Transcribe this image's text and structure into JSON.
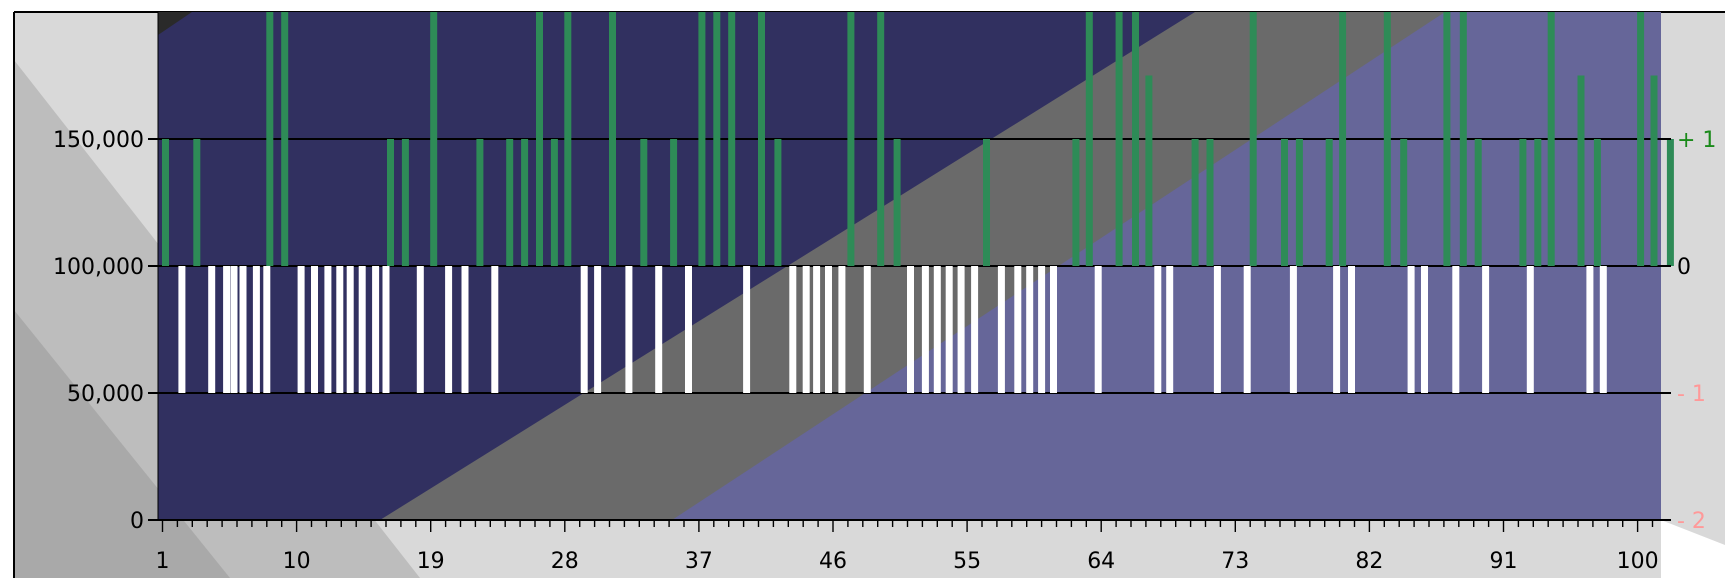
{
  "chart_data": {
    "type": "bar",
    "title": "",
    "xlabel": "",
    "ylabel": "",
    "x_ticks": [
      1,
      10,
      19,
      28,
      37,
      46,
      55,
      64,
      73,
      82,
      91,
      100
    ],
    "x_tick_labels": [
      "1",
      "10",
      "19",
      "28",
      "37",
      "46",
      "55",
      "64",
      "73",
      "82",
      "91",
      "100"
    ],
    "xlim": [
      1,
      101
    ],
    "y_ticks": [
      0,
      50000,
      100000,
      150000
    ],
    "y_tick_labels": [
      "0",
      "50,000",
      "100,000",
      "150,000"
    ],
    "ylim": [
      0,
      200000
    ],
    "y2_ticks": [
      -2,
      -1,
      0,
      1
    ],
    "y2_tick_labels": [
      "- 2",
      "- 1",
      "0",
      "+ 1"
    ],
    "y2lim": [
      -2,
      2
    ],
    "grid": true,
    "legend": "none",
    "baseline": 100000,
    "series": [
      {
        "color": "#2e8b57",
        "values": [
          {
            "x": 1.2,
            "y": 150000
          },
          {
            "x": 3.3,
            "y": 150000
          },
          {
            "x": 8.2,
            "y": 200000
          },
          {
            "x": 9.2,
            "y": 200000
          },
          {
            "x": 16.3,
            "y": 150000
          },
          {
            "x": 17.3,
            "y": 150000
          },
          {
            "x": 19.2,
            "y": 200000
          },
          {
            "x": 22.3,
            "y": 150000
          },
          {
            "x": 24.3,
            "y": 150000
          },
          {
            "x": 25.3,
            "y": 150000
          },
          {
            "x": 26.3,
            "y": 200000
          },
          {
            "x": 27.3,
            "y": 150000
          },
          {
            "x": 28.2,
            "y": 200000
          },
          {
            "x": 31.2,
            "y": 200000
          },
          {
            "x": 33.3,
            "y": 150000
          },
          {
            "x": 35.3,
            "y": 150000
          },
          {
            "x": 37.2,
            "y": 200000
          },
          {
            "x": 38.2,
            "y": 200000
          },
          {
            "x": 39.2,
            "y": 200000
          },
          {
            "x": 41.2,
            "y": 200000
          },
          {
            "x": 42.3,
            "y": 150000
          },
          {
            "x": 47.2,
            "y": 200000
          },
          {
            "x": 49.2,
            "y": 200000
          },
          {
            "x": 50.3,
            "y": 150000
          },
          {
            "x": 56.3,
            "y": 150000
          },
          {
            "x": 62.3,
            "y": 150000
          },
          {
            "x": 63.2,
            "y": 200000
          },
          {
            "x": 65.2,
            "y": 200000
          },
          {
            "x": 66.3,
            "y": 200000
          },
          {
            "x": 67.2,
            "y": 175000
          },
          {
            "x": 70.3,
            "y": 150000
          },
          {
            "x": 71.3,
            "y": 150000
          },
          {
            "x": 74.2,
            "y": 200000
          },
          {
            "x": 76.3,
            "y": 150000
          },
          {
            "x": 77.3,
            "y": 150000
          },
          {
            "x": 79.3,
            "y": 150000
          },
          {
            "x": 80.2,
            "y": 200000
          },
          {
            "x": 83.2,
            "y": 200000
          },
          {
            "x": 84.3,
            "y": 150000
          },
          {
            "x": 87.2,
            "y": 200000
          },
          {
            "x": 88.3,
            "y": 200000
          },
          {
            "x": 89.3,
            "y": 150000
          },
          {
            "x": 92.3,
            "y": 150000
          },
          {
            "x": 93.3,
            "y": 150000
          },
          {
            "x": 94.2,
            "y": 200000
          },
          {
            "x": 96.2,
            "y": 175000
          },
          {
            "x": 97.3,
            "y": 150000
          },
          {
            "x": 100.2,
            "y": 200000
          },
          {
            "x": 101.1,
            "y": 175000
          },
          {
            "x": 102.2,
            "y": 150000
          }
        ]
      },
      {
        "color": "#ffffff",
        "values": [
          {
            "x": 2.3,
            "y": 50000
          },
          {
            "x": 4.3,
            "y": 50000
          },
          {
            "x": 5.3,
            "y": 50000
          },
          {
            "x": 5.8,
            "y": 50000
          },
          {
            "x": 6.4,
            "y": 50000
          },
          {
            "x": 7.3,
            "y": 50000
          },
          {
            "x": 8.0,
            "y": 50000
          },
          {
            "x": 10.3,
            "y": 50000
          },
          {
            "x": 11.2,
            "y": 50000
          },
          {
            "x": 12.1,
            "y": 50000
          },
          {
            "x": 12.9,
            "y": 50000
          },
          {
            "x": 13.6,
            "y": 50000
          },
          {
            "x": 14.4,
            "y": 50000
          },
          {
            "x": 15.3,
            "y": 50000
          },
          {
            "x": 16.0,
            "y": 50000
          },
          {
            "x": 18.3,
            "y": 50000
          },
          {
            "x": 20.2,
            "y": 50000
          },
          {
            "x": 21.3,
            "y": 50000
          },
          {
            "x": 23.3,
            "y": 50000
          },
          {
            "x": 29.3,
            "y": 50000
          },
          {
            "x": 30.2,
            "y": 50000
          },
          {
            "x": 32.3,
            "y": 50000
          },
          {
            "x": 34.3,
            "y": 50000
          },
          {
            "x": 36.3,
            "y": 50000
          },
          {
            "x": 40.2,
            "y": 50000
          },
          {
            "x": 43.3,
            "y": 50000
          },
          {
            "x": 44.2,
            "y": 50000
          },
          {
            "x": 44.9,
            "y": 50000
          },
          {
            "x": 45.7,
            "y": 50000
          },
          {
            "x": 46.6,
            "y": 50000
          },
          {
            "x": 48.3,
            "y": 50000
          },
          {
            "x": 51.2,
            "y": 50000
          },
          {
            "x": 52.2,
            "y": 50000
          },
          {
            "x": 53.0,
            "y": 50000
          },
          {
            "x": 53.8,
            "y": 50000
          },
          {
            "x": 54.6,
            "y": 50000
          },
          {
            "x": 55.5,
            "y": 50000
          },
          {
            "x": 57.3,
            "y": 50000
          },
          {
            "x": 58.4,
            "y": 50000
          },
          {
            "x": 59.2,
            "y": 50000
          },
          {
            "x": 60.0,
            "y": 50000
          },
          {
            "x": 60.8,
            "y": 50000
          },
          {
            "x": 63.8,
            "y": 50000
          },
          {
            "x": 67.8,
            "y": 50000
          },
          {
            "x": 68.6,
            "y": 50000
          },
          {
            "x": 71.8,
            "y": 50000
          },
          {
            "x": 73.8,
            "y": 50000
          },
          {
            "x": 76.9,
            "y": 50000
          },
          {
            "x": 79.8,
            "y": 50000
          },
          {
            "x": 80.8,
            "y": 50000
          },
          {
            "x": 84.8,
            "y": 50000
          },
          {
            "x": 85.7,
            "y": 50000
          },
          {
            "x": 87.8,
            "y": 50000
          },
          {
            "x": 89.8,
            "y": 50000
          },
          {
            "x": 92.8,
            "y": 50000
          },
          {
            "x": 96.8,
            "y": 50000
          },
          {
            "x": 97.7,
            "y": 50000
          }
        ]
      }
    ],
    "colors": {
      "panel_dark": "#313060",
      "panel_gray": "#6a6a6a",
      "panel_light": "#666699",
      "outer_light": "#d9d9d9",
      "outer_mid": "#bdbdbd",
      "outer_dark": "#a9a9a9",
      "gridline": "#000000",
      "axis_text": "#000000",
      "y2_positive": "#1a8a1a",
      "y2_zero": "#000000",
      "y2_negative": "#ff9999"
    }
  }
}
